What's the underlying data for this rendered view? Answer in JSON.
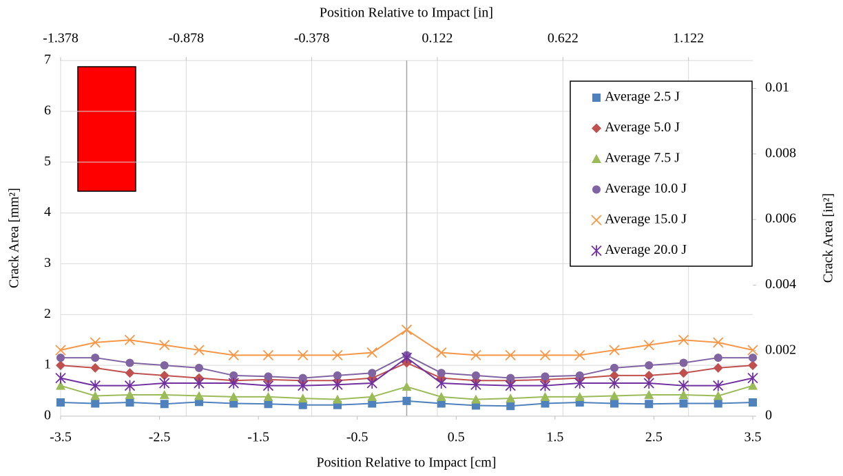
{
  "chart_data": {
    "type": "line",
    "x_label": "Position Relative to Impact [cm]",
    "x2_label": "Position Relative to Impact [in]",
    "y_label": "Crack Area [mm²]",
    "y2_label": "Crack Area [in²]",
    "x": [
      -3.5,
      -3.15,
      -2.8,
      -2.45,
      -2.1,
      -1.75,
      -1.4,
      -1.05,
      -0.7,
      -0.35,
      0,
      0.35,
      0.7,
      1.05,
      1.4,
      1.75,
      2.1,
      2.45,
      2.8,
      3.15,
      3.5
    ],
    "xlim": [
      -3.5,
      3.5
    ],
    "xticks": [
      -3.5,
      -2.5,
      -1.5,
      -0.5,
      0.5,
      1.5,
      2.5,
      3.5
    ],
    "x2lim": [
      -1.378,
      1.378
    ],
    "x2ticks": [
      -1.378,
      -0.878,
      -0.378,
      0.122,
      0.622,
      1.122
    ],
    "ylim": [
      0,
      7
    ],
    "yticks": [
      0,
      1,
      2,
      3,
      4,
      5,
      6,
      7
    ],
    "y2lim": [
      0,
      0.01085
    ],
    "y2ticks": [
      0,
      0.002,
      0.004,
      0.006,
      0.008,
      0.01
    ],
    "grid": true,
    "legend": "upper right",
    "series": [
      {
        "name": "Average 2.5 J",
        "color": "#4f81bd",
        "marker": "square",
        "values": [
          0.27,
          0.25,
          0.27,
          0.24,
          0.28,
          0.25,
          0.24,
          0.22,
          0.22,
          0.25,
          0.3,
          0.25,
          0.21,
          0.2,
          0.25,
          0.27,
          0.25,
          0.24,
          0.25,
          0.25,
          0.27
        ]
      },
      {
        "name": "Average 5.0 J",
        "color": "#c0504d",
        "marker": "diamond",
        "values": [
          1.0,
          0.95,
          0.85,
          0.8,
          0.75,
          0.7,
          0.72,
          0.7,
          0.7,
          0.75,
          1.05,
          0.75,
          0.7,
          0.7,
          0.72,
          0.75,
          0.8,
          0.8,
          0.85,
          0.95,
          1.0
        ]
      },
      {
        "name": "Average 7.5 J",
        "color": "#9bbb59",
        "marker": "triangle",
        "values": [
          0.6,
          0.4,
          0.42,
          0.42,
          0.4,
          0.38,
          0.38,
          0.35,
          0.33,
          0.38,
          0.58,
          0.38,
          0.33,
          0.35,
          0.38,
          0.38,
          0.4,
          0.42,
          0.42,
          0.4,
          0.6
        ]
      },
      {
        "name": "Average 10.0 J",
        "color": "#8064a2",
        "marker": "circle",
        "values": [
          1.15,
          1.15,
          1.05,
          1.0,
          0.95,
          0.8,
          0.78,
          0.75,
          0.8,
          0.85,
          1.2,
          0.85,
          0.8,
          0.75,
          0.78,
          0.8,
          0.95,
          1.0,
          1.05,
          1.15,
          1.15
        ]
      },
      {
        "name": "Average 15.0 J",
        "color": "#f79646",
        "marker": "x",
        "values": [
          1.3,
          1.45,
          1.5,
          1.4,
          1.3,
          1.2,
          1.2,
          1.2,
          1.2,
          1.25,
          1.7,
          1.25,
          1.2,
          1.2,
          1.2,
          1.2,
          1.3,
          1.4,
          1.5,
          1.45,
          1.3
        ]
      },
      {
        "name": "Average 20.0 J",
        "color": "#7030a0",
        "marker": "star",
        "values": [
          0.75,
          0.6,
          0.6,
          0.65,
          0.65,
          0.65,
          0.6,
          0.6,
          0.62,
          0.65,
          1.15,
          0.65,
          0.62,
          0.6,
          0.6,
          0.65,
          0.65,
          0.65,
          0.6,
          0.6,
          0.75
        ]
      }
    ]
  }
}
